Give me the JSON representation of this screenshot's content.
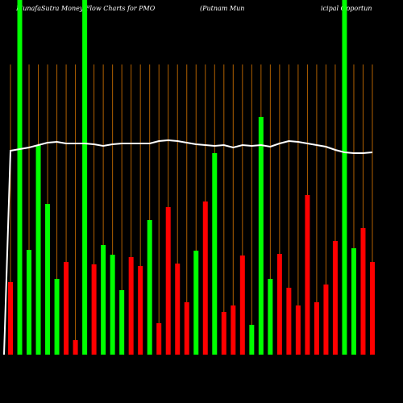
{
  "chart_data": {
    "type": "bar",
    "title": "MunafaSutra  Money Flow  Charts for PMO",
    "subtitle_parts": [
      "(Putnam Mun",
      "icipal Opportun"
    ],
    "ylim": [
      0,
      440
    ],
    "colors": [
      "#ff0000",
      "#00ff00",
      "#00ff00",
      "#00ff00",
      "#00ff00",
      "#00ff00",
      "#ff0000",
      "#ff0000",
      "#00ff00",
      "#ff0000",
      "#00ff00",
      "#00ff00",
      "#00ff00",
      "#ff0000",
      "#ff0000",
      "#00ff00",
      "#ff0000",
      "#ff0000",
      "#ff0000",
      "#ff0000",
      "#00ff00",
      "#ff0000",
      "#00ff00",
      "#ff0000",
      "#ff0000",
      "#ff0000",
      "#00ff00",
      "#00ff00",
      "#00ff00",
      "#ff0000",
      "#ff0000",
      "#ff0000",
      "#ff0000",
      "#ff0000",
      "#ff0000",
      "#ff0000",
      "#00ff00",
      "#00ff00",
      "#ff0000",
      "#ff0000"
    ],
    "values": [
      90,
      440,
      130,
      260,
      187,
      94,
      115,
      18,
      440,
      112,
      136,
      124,
      80,
      121,
      110,
      167,
      39,
      183,
      113,
      65,
      129,
      190,
      250,
      53,
      61,
      123,
      37,
      295,
      94,
      125,
      83,
      61,
      198,
      65,
      87,
      141,
      440,
      132,
      157,
      115
    ],
    "line_values": [
      253,
      255,
      257,
      260,
      263,
      264,
      262,
      262,
      262,
      261,
      259,
      261,
      262,
      262,
      262,
      262,
      265,
      266,
      265,
      263,
      261,
      260,
      259,
      260,
      257,
      260,
      259,
      260,
      258,
      262,
      265,
      264,
      262,
      260,
      258,
      254,
      251,
      250,
      250,
      251
    ],
    "line_color": "#ffffff"
  }
}
